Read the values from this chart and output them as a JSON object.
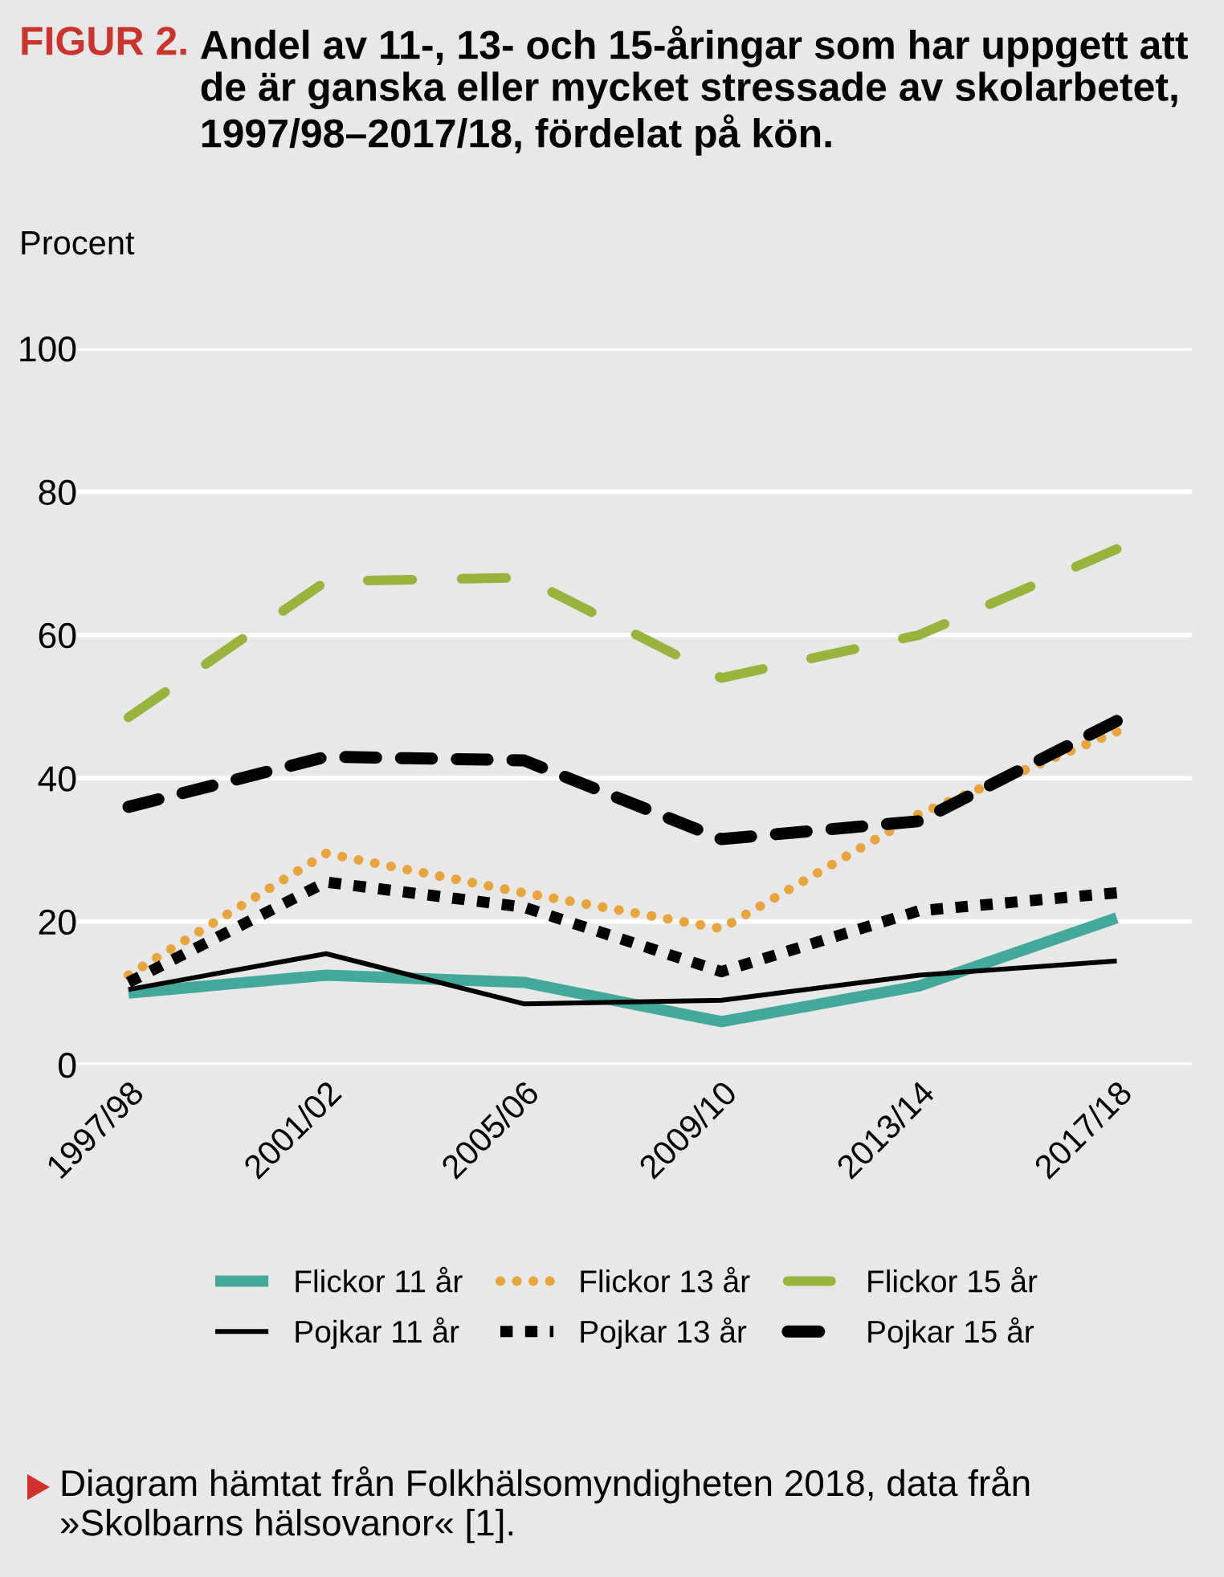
{
  "chart_data": {
    "type": "line",
    "title": "FIGUR 2.",
    "subtitle": "Andel av 11-, 13- och 15-åringar som har uppgett att de är ganska eller mycket stressade av skolarbetet, 1997/98–2017/18, fördelat på kön.",
    "ylabel": "Procent",
    "categories": [
      "1997/98",
      "2001/02",
      "2005/06",
      "2009/10",
      "2013/14",
      "2017/18"
    ],
    "ylim": [
      0,
      100
    ],
    "yticks": [
      0,
      20,
      40,
      60,
      80,
      100
    ],
    "grid": "y",
    "legend": "bottom",
    "series": [
      {
        "name": "Flickor 11 år",
        "color": "#42a99c",
        "line_style": "solid",
        "values": [
          10,
          12.5,
          11.5,
          6,
          11,
          20.5
        ]
      },
      {
        "name": "Flickor 13 år",
        "color": "#eaa43c",
        "line_style": "dotted",
        "values": [
          12.5,
          29.5,
          24,
          19,
          35,
          46.5
        ]
      },
      {
        "name": "Flickor 15 år",
        "color": "#98b43c",
        "line_style": "dashed",
        "values": [
          48.5,
          67.5,
          68,
          54,
          60,
          72
        ]
      },
      {
        "name": "Pojkar 11 år",
        "color": "#000000",
        "line_style": "solid",
        "values": [
          10.5,
          15.5,
          8.5,
          9,
          12.5,
          14.5
        ]
      },
      {
        "name": "Pojkar 13 år",
        "color": "#000000",
        "line_style": "dotted",
        "values": [
          11.5,
          25.5,
          22,
          13,
          21.5,
          24
        ]
      },
      {
        "name": "Pojkar 15 år",
        "color": "#000000",
        "line_style": "dashed",
        "values": [
          36,
          43,
          42.5,
          31.5,
          34,
          48
        ]
      }
    ],
    "annotations": [
      "Diagram hämtat från Folkhälsomyndigheten 2018, data från »Skolbarns hälsovanor« [1]."
    ]
  }
}
